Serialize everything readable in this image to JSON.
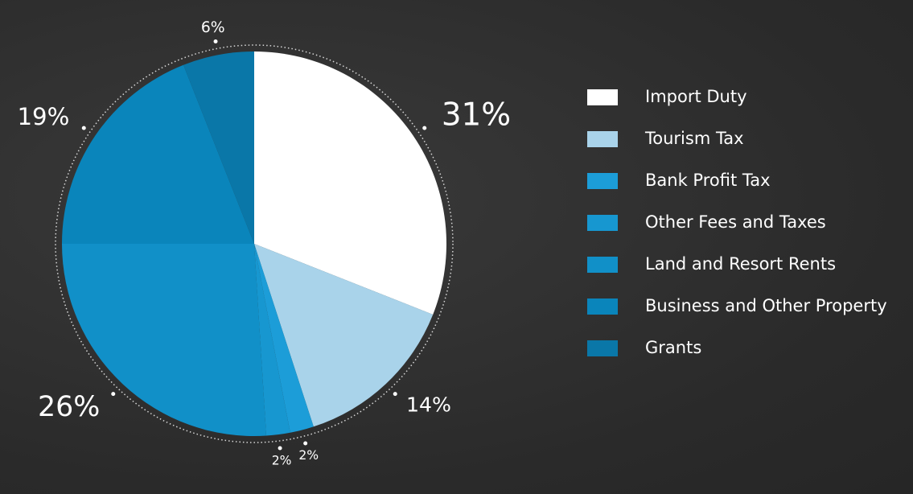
{
  "chart_data": {
    "type": "pie",
    "categories": [
      "Import Duty",
      "Tourism Tax",
      "Bank Profit Tax",
      "Other Fees and Taxes",
      "Land and Resort Rents",
      "Business and Other Property",
      "Grants"
    ],
    "values": [
      31,
      14,
      2,
      2,
      26,
      19,
      6
    ],
    "value_labels": [
      "31%",
      "14%",
      "2%",
      "2%",
      "26%",
      "19%",
      "6%"
    ],
    "colors": [
      "#ffffff",
      "#a9d3ea",
      "#1c9dd8",
      "#1797d0",
      "#1190c8",
      "#0a85bb",
      "#0a77a8"
    ],
    "legend": "right"
  }
}
